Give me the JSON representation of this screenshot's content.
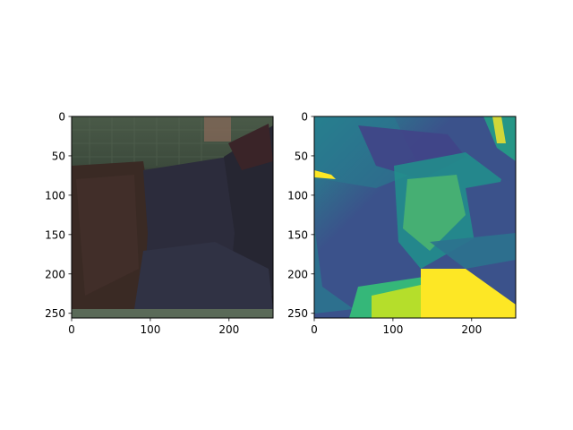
{
  "figure": {
    "background": "#ffffff"
  },
  "chart_data": [
    {
      "type": "heatmap",
      "subtype": "rgb-image",
      "title": "",
      "xlabel": "",
      "ylabel": "",
      "xlim": [
        0,
        256
      ],
      "ylim": [
        256,
        0
      ],
      "x_ticks": [
        {
          "value": 0,
          "label": "0"
        },
        {
          "value": 100,
          "label": "100"
        },
        {
          "value": 200,
          "label": "200"
        }
      ],
      "y_ticks": [
        {
          "value": 0,
          "label": "0"
        },
        {
          "value": 50,
          "label": "50"
        },
        {
          "value": 100,
          "label": "100"
        },
        {
          "value": 150,
          "label": "150"
        },
        {
          "value": 200,
          "label": "200"
        },
        {
          "value": 250,
          "label": "250"
        }
      ],
      "grid": false,
      "image_content": "photo of dark clothing folds in front of a greenish grid background",
      "palette": [
        "#3c4a3c",
        "#2a2226",
        "#3a2a24",
        "#2c2c3c",
        "#1e1c22",
        "#4a5a48"
      ]
    },
    {
      "type": "heatmap",
      "subtype": "single-channel-image",
      "colormap": "viridis",
      "title": "",
      "xlabel": "",
      "ylabel": "",
      "xlim": [
        0,
        256
      ],
      "ylim": [
        256,
        0
      ],
      "x_ticks": [
        {
          "value": 0,
          "label": "0"
        },
        {
          "value": 100,
          "label": "100"
        },
        {
          "value": 200,
          "label": "200"
        }
      ],
      "y_ticks": [
        {
          "value": 0,
          "label": "0"
        },
        {
          "value": 50,
          "label": "50"
        },
        {
          "value": 100,
          "label": "100"
        },
        {
          "value": 150,
          "label": "150"
        },
        {
          "value": 200,
          "label": "200"
        },
        {
          "value": 250,
          "label": "250"
        }
      ],
      "grid": false,
      "image_content": "single channel of the same photo rendered with the viridis colormap",
      "palette": [
        "#440154",
        "#3b528b",
        "#21918c",
        "#5ec962",
        "#fde725"
      ]
    }
  ]
}
